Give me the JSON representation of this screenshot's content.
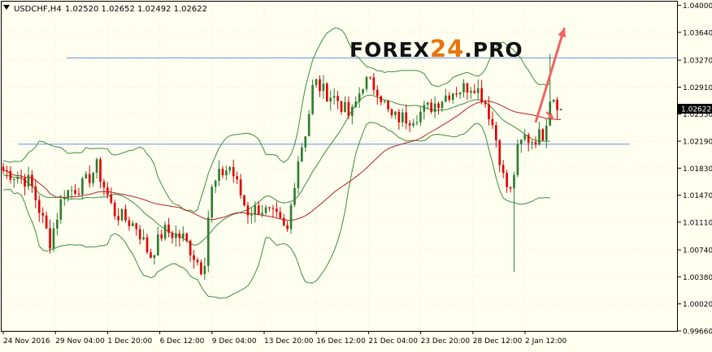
{
  "header": {
    "symbol": "USDCHF,H4",
    "ohlc": "1.02520 1.02652 1.02492 1.02622"
  },
  "watermark": {
    "part1": "FOREX",
    "part2": "24",
    "part3": ".PRO"
  },
  "colors": {
    "background": "#FFFFF0",
    "bull": "#2E7D32",
    "bear": "#E00000",
    "bands": "#3C8C3C",
    "ma": "#B22222",
    "hline": "#6C8CE6",
    "arrow": "#F26262",
    "grid": "#E6E6D8",
    "axis": "#000000",
    "price_tag": "#000000"
  },
  "chart_data": {
    "type": "candlestick",
    "ylim": [
      0.9966,
      1.0405
    ],
    "y_ticks": [
      "1.04000",
      "1.03640",
      "1.03270",
      "1.02910",
      "1.02550",
      "1.02190",
      "1.01830",
      "1.01470",
      "1.01110",
      "1.00740",
      "1.00380",
      "1.00020",
      "0.99660"
    ],
    "x_ticks": [
      "24 Nov 2016",
      "29 Nov 04:00",
      "1 Dec 20:00",
      "6 Dec 12:00",
      "9 Dec 04:00",
      "13 Dec 20:00",
      "16 Dec 12:00",
      "21 Dec 04:00",
      "23 Dec 20:00",
      "28 Dec 12:00",
      "2 Jan 12:00"
    ],
    "current_price": "1.02622",
    "support_resistance": [
      1.033,
      1.0215
    ],
    "arrow": {
      "from": [
        148,
        1.0244
      ],
      "to": [
        156,
        1.037
      ]
    },
    "small_arrow": {
      "from": [
        151,
        1.0258
      ],
      "to": [
        153,
        1.0248
      ]
    },
    "candles_count": 156
  }
}
